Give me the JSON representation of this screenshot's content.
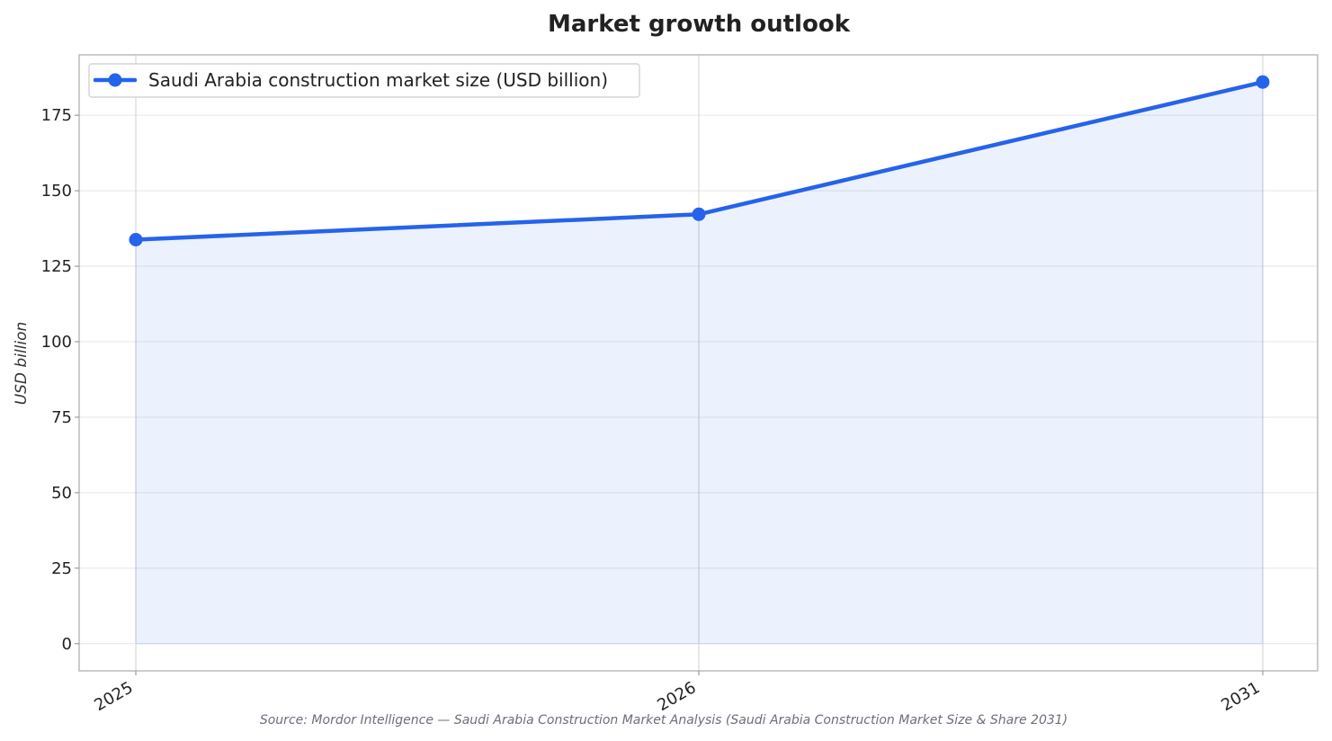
{
  "chart_data": {
    "type": "line",
    "title": "Market growth outlook",
    "xlabel": "",
    "ylabel": "USD billion",
    "categories": [
      "2025",
      "2026",
      "2031"
    ],
    "series": [
      {
        "name": "Saudi Arabia construction market size (USD billion)",
        "values": [
          133.8,
          142.2,
          186.0
        ]
      }
    ],
    "ylim": [
      -9,
      195
    ],
    "yticks": [
      0,
      25,
      50,
      75,
      100,
      125,
      150,
      175
    ],
    "grid": true,
    "legend": "top-left",
    "area_fill": true,
    "source": "Source: Mordor Intelligence — Saudi Arabia Construction Market Analysis (Saudi Arabia Construction Market Size & Share 2031)"
  },
  "colors": {
    "line": "#2563eb",
    "fill": "#2563eb",
    "grid": "#e6e6e6",
    "frame": "#bbbbbb"
  }
}
